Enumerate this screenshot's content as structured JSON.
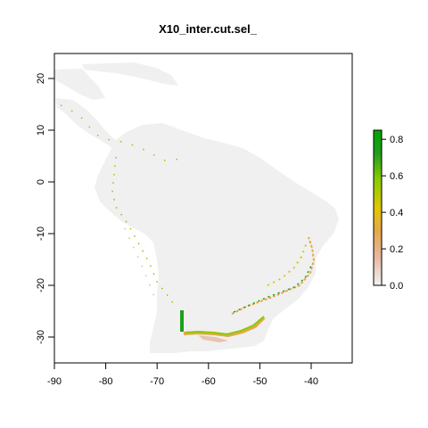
{
  "title": "X10_inter.cut.sel_",
  "x_axis": {
    "range": [
      -90,
      -32
    ],
    "ticks": [
      "-90",
      "-80",
      "-70",
      "-60",
      "-50",
      "-40"
    ]
  },
  "y_axis": {
    "range": [
      -35,
      25
    ],
    "ticks": [
      "20",
      "10",
      "0",
      "-10",
      "-20",
      "-30"
    ]
  },
  "legend": {
    "ticks": [
      "0.8",
      "0.6",
      "0.4",
      "0.2",
      "0.0"
    ],
    "range": [
      0.0,
      0.85
    ],
    "colors": [
      "#f2f2f2",
      "#e6b8a2",
      "#e6a84a",
      "#e2c600",
      "#88cc00",
      "#1f9e1f",
      "#00a600"
    ]
  },
  "colors": {
    "land": "#f0f0f0",
    "background": "#ffffff",
    "frame": "#000000"
  },
  "map": {
    "layer": "suitability raster",
    "coastlines": "South America, Central America, Caribbean"
  }
}
